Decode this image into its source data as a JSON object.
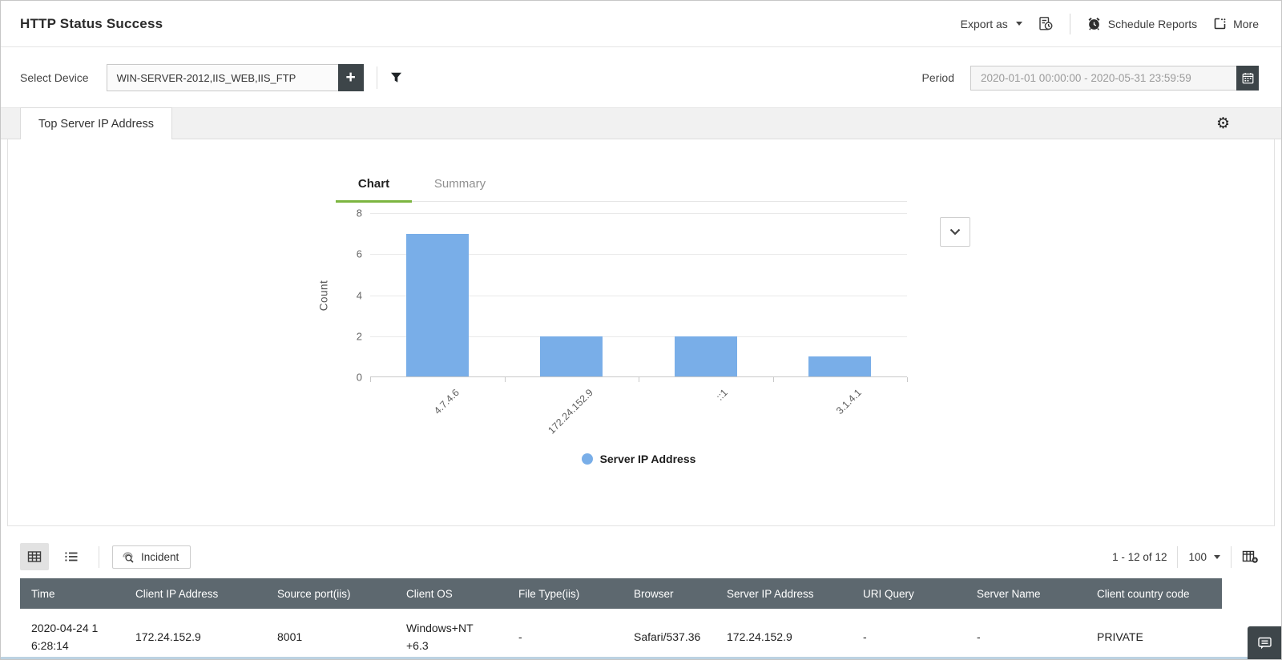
{
  "header": {
    "title": "HTTP Status Success",
    "export_as_label": "Export as",
    "schedule_reports_label": "Schedule Reports",
    "more_label": "More"
  },
  "filters": {
    "select_device_label": "Select Device",
    "device_value": "WIN-SERVER-2012,IIS_WEB,IIS_FTP",
    "period_label": "Period",
    "period_value": "2020-01-01 00:00:00 - 2020-05-31 23:59:59"
  },
  "report_tab": {
    "title": "Top Server IP Address"
  },
  "chart_tabs": {
    "chart_label": "Chart",
    "summary_label": "Summary"
  },
  "chart_data": {
    "type": "bar",
    "title": "Top Server IP Address",
    "categories": [
      "4.7.4.6",
      "172.24.152.9",
      "::1",
      "3.1.4.1"
    ],
    "values": [
      7,
      2,
      2,
      1
    ],
    "series_name": "Server IP Address",
    "xlabel": "",
    "ylabel": "Count",
    "ylim": [
      0,
      8
    ],
    "yticks": [
      0,
      2,
      4,
      6,
      8
    ],
    "grid": true,
    "legend_position": "bottom",
    "bar_color": "#79aee8"
  },
  "table": {
    "toolbar": {
      "incident_label": "Incident",
      "pagination_text": "1 - 12 of 12",
      "page_size": "100"
    },
    "columns": [
      "Time",
      "Client IP Address",
      "Source port(iis)",
      "Client OS",
      "File Type(iis)",
      "Browser",
      "Server IP Address",
      "URI Query",
      "Server Name",
      "Client country code"
    ],
    "rows": [
      [
        "2020-04-24 16:28:14",
        "172.24.152.9",
        "8001",
        "Windows+NT+6.3",
        "-",
        "Safari/537.36",
        "172.24.152.9",
        "-",
        "-",
        "PRIVATE"
      ]
    ]
  },
  "colors": {
    "accent_green": "#7cb540",
    "bar_blue": "#79aee8",
    "table_header_bg": "#5d686f",
    "dark_button_bg": "#3d4549"
  }
}
